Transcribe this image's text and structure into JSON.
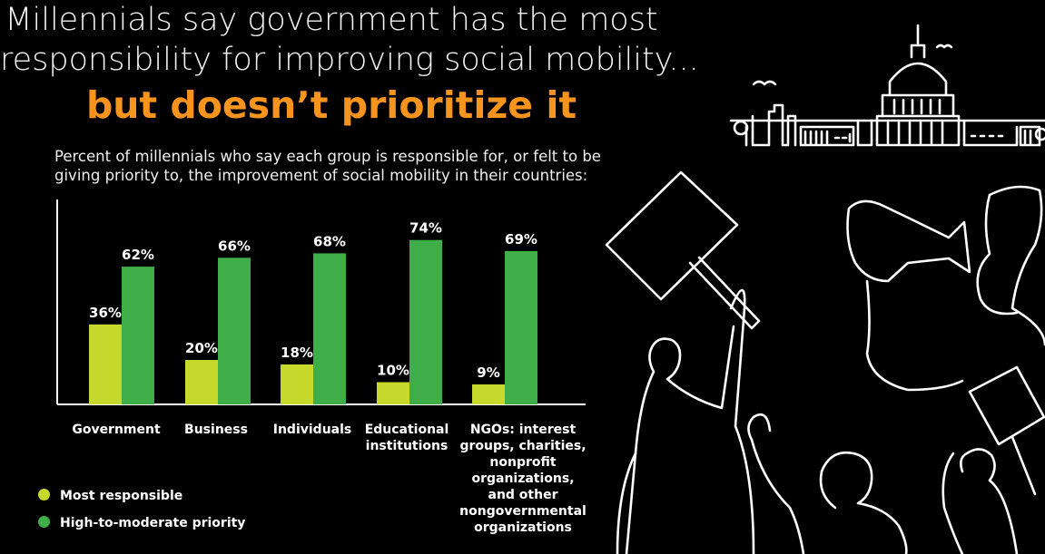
{
  "header": {
    "title_line1": "Millennials say government has the most",
    "title_line2": "responsibility for improving social mobility...",
    "title_accent": "but doesn’t prioritize it",
    "subtitle": "Percent of millennials who say each group is responsible for, or felt to be giving priority to, the improvement of social mobility in their countries:"
  },
  "chart_data": {
    "type": "bar",
    "categories": [
      "Government",
      "Business",
      "Individuals",
      "Educational institutions",
      "NGOs: interest groups, charities, nonprofit organizations, and other nongovernmental organizations"
    ],
    "series": [
      {
        "name": "Most responsible",
        "values": [
          36,
          20,
          18,
          10,
          9
        ],
        "color": "#c8d92e"
      },
      {
        "name": "High-to-moderate priority",
        "values": [
          62,
          66,
          68,
          74,
          69
        ],
        "color": "#3fae49"
      }
    ],
    "value_labels": [
      [
        "36%",
        "20%",
        "18%",
        "10%",
        "9%"
      ],
      [
        "62%",
        "66%",
        "68%",
        "74%",
        "69%"
      ]
    ],
    "category_labels": [
      [
        "Government"
      ],
      [
        "Business"
      ],
      [
        "Individuals"
      ],
      [
        "Educational",
        "institutions"
      ],
      [
        "NGOs: interest",
        "groups, charities,",
        "nonprofit",
        "organizations,",
        "and other",
        "nongovernmental",
        "organizations"
      ]
    ],
    "ylim": [
      0,
      80
    ],
    "grid": false,
    "legend_position": "bottom-left"
  },
  "colors": {
    "background": "#000000",
    "accent": "#f7941d",
    "most_responsible": "#c8d92e",
    "priority": "#3fae49"
  },
  "decoration": {
    "illustration": "protesters-and-capitol-outline"
  }
}
